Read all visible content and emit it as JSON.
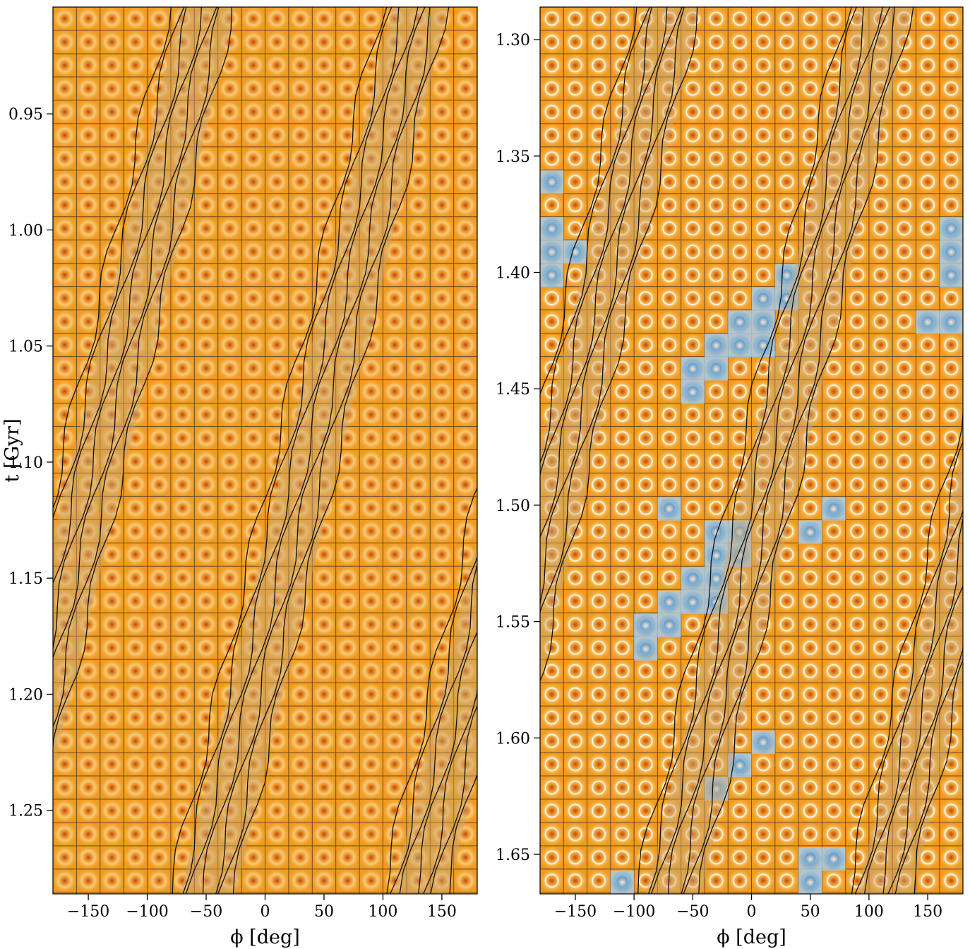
{
  "chart_data": [
    {
      "type": "tiles",
      "x_label": "ϕ [deg]",
      "y_label": "t [Gyr]",
      "xlim": [
        -180,
        180
      ],
      "ylim": [
        0.904,
        1.286
      ],
      "xticks": [
        {
          "value": -150,
          "label": "−150"
        },
        {
          "value": -100,
          "label": "−100"
        },
        {
          "value": -50,
          "label": "−50"
        },
        0,
        50,
        100,
        150
      ],
      "yticks": [
        0.95,
        {
          "value": 1.0,
          "label": "1.00"
        },
        1.05,
        {
          "value": 1.1,
          "label": "1.10"
        },
        1.15,
        {
          "value": 1.2,
          "label": "1.20"
        },
        1.25
      ]
    },
    {
      "type": "tiles",
      "x_label": "ϕ [deg]",
      "xlim": [
        -180,
        180
      ],
      "ylim": [
        1.286,
        1.667
      ],
      "xticks": [
        {
          "value": -150,
          "label": "−150"
        },
        {
          "value": -100,
          "label": "−100"
        },
        {
          "value": -50,
          "label": "−50"
        },
        0,
        50,
        100,
        150
      ],
      "yticks": [
        {
          "value": 1.3,
          "label": "1.30"
        },
        1.35,
        {
          "value": 1.4,
          "label": "1.40"
        },
        1.45,
        {
          "value": 1.5,
          "label": "1.50"
        },
        1.55,
        {
          "value": 1.6,
          "label": "1.60"
        },
        1.65
      ]
    }
  ]
}
